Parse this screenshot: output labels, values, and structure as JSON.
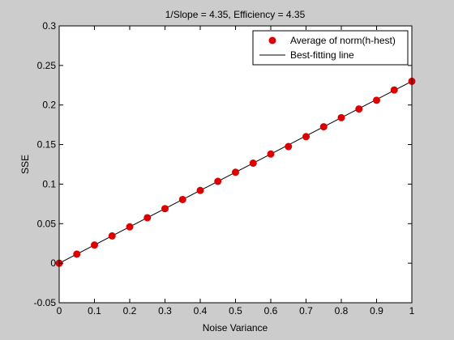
{
  "colors": {
    "figure_background": "#cccccc",
    "axes_background": "#ffffff",
    "marker": "#dd0000",
    "line": "#000000"
  },
  "chart_data": {
    "type": "scatter",
    "title": "1/Slope =  4.35, Efficiency =  4.35",
    "xlabel": "Noise Variance",
    "ylabel": "SSE",
    "xlim": [
      0,
      1
    ],
    "ylim": [
      -0.05,
      0.3
    ],
    "xticks": [
      0,
      0.1,
      0.2,
      0.3,
      0.4,
      0.5,
      0.6,
      0.7,
      0.8,
      0.9,
      1
    ],
    "xtick_labels": [
      "0",
      "0.1",
      "0.2",
      "0.3",
      "0.4",
      "0.5",
      "0.6",
      "0.7",
      "0.8",
      "0.9",
      "1"
    ],
    "yticks": [
      -0.05,
      0,
      0.05,
      0.1,
      0.15,
      0.2,
      0.25,
      0.3
    ],
    "ytick_labels": [
      "-0.05",
      "0",
      "0.05",
      "0.1",
      "0.15",
      "0.2",
      "0.25",
      "0.3"
    ],
    "grid": false,
    "legend_position": "top-right",
    "series": [
      {
        "name": "Average of norm(h-hest)",
        "kind": "markers",
        "x": [
          0,
          0.05,
          0.1,
          0.15,
          0.2,
          0.25,
          0.3,
          0.35,
          0.4,
          0.45,
          0.5,
          0.55,
          0.6,
          0.65,
          0.7,
          0.75,
          0.8,
          0.85,
          0.9,
          0.95,
          1
        ],
        "y": [
          0.0,
          0.0115,
          0.023,
          0.0345,
          0.046,
          0.0575,
          0.069,
          0.0805,
          0.092,
          0.1035,
          0.115,
          0.1265,
          0.138,
          0.1475,
          0.16,
          0.1725,
          0.184,
          0.195,
          0.206,
          0.219,
          0.23
        ]
      },
      {
        "name": "Best-fitting line",
        "kind": "line",
        "x": [
          0,
          1
        ],
        "y": [
          0,
          0.23
        ]
      }
    ]
  }
}
